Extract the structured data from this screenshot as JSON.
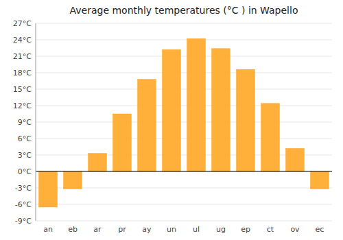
{
  "chart_data": {
    "type": "bar",
    "title": "Average monthly temperatures (°C ) in Wapello",
    "categories": [
      "an",
      "eb",
      "ar",
      "pr",
      "ay",
      "un",
      "ul",
      "ug",
      "ep",
      "ct",
      "ov",
      "ec"
    ],
    "values": [
      -6.5,
      -3.2,
      3.3,
      10.5,
      16.8,
      22.2,
      24.2,
      22.4,
      18.6,
      12.4,
      4.2,
      -3.2
    ],
    "color": "#FFA726",
    "ylim": [
      -9,
      27
    ],
    "yticks": [
      {
        "value": -9,
        "label": "-9°C"
      },
      {
        "value": -6,
        "label": "-6°C"
      },
      {
        "value": -3,
        "label": "-3°C"
      },
      {
        "value": 0,
        "label": "0°C"
      },
      {
        "value": 3,
        "label": "3°C"
      },
      {
        "value": 6,
        "label": "6°C"
      },
      {
        "value": 9,
        "label": "9°C"
      },
      {
        "value": 12,
        "label": "12°C"
      },
      {
        "value": 15,
        "label": "15°C"
      },
      {
        "value": 18,
        "label": "18°C"
      },
      {
        "value": 21,
        "label": "21°C"
      },
      {
        "value": 24,
        "label": "24°C"
      },
      {
        "value": 27,
        "label": "27°C"
      }
    ],
    "grid": true
  }
}
